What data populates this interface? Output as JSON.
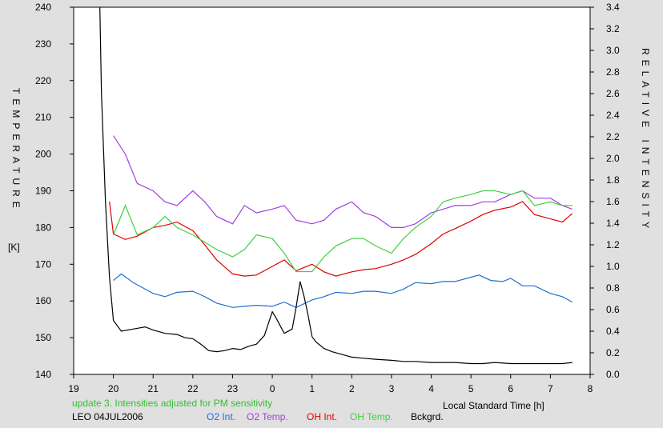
{
  "chart_data": {
    "type": "line",
    "left_axis_label": "TEMPERATURE",
    "left_axis_unit": "[K]",
    "right_axis_label": "RELATIVE INTENSITY",
    "xlabel": "Local Standard Time [h]",
    "xlim": [
      19,
      8
    ],
    "x_tick_labels": [
      "19",
      "20",
      "21",
      "22",
      "23",
      "0",
      "1",
      "2",
      "3",
      "4",
      "5",
      "6",
      "7",
      "8"
    ],
    "ylim_left": [
      140,
      240
    ],
    "y_left_ticks": [
      140,
      150,
      160,
      170,
      180,
      190,
      200,
      210,
      220,
      230,
      240
    ],
    "ylim_right": [
      0.0,
      3.4
    ],
    "y_right_ticks": [
      "0.0",
      "0.2",
      "0.4",
      "0.6",
      "0.8",
      "1.0",
      "1.2",
      "1.4",
      "1.6",
      "1.8",
      "2.0",
      "2.2",
      "2.4",
      "2.6",
      "2.8",
      "3.0",
      "3.2",
      "3.4"
    ],
    "grid": false,
    "note": "update 3. Intensities adjusted for PM sensitivity",
    "station_date": "LEO 04JUL2006",
    "series": [
      {
        "name": "O2 Int.",
        "color": "#1f6fd0",
        "axis": "right",
        "x": [
          20.0,
          20.2,
          20.5,
          20.8,
          21.0,
          21.3,
          21.6,
          22.0,
          22.3,
          22.6,
          23.0,
          23.3,
          23.6,
          24.0,
          24.3,
          24.6,
          25.0,
          25.3,
          25.6,
          26.0,
          26.3,
          26.6,
          27.0,
          27.3,
          27.6,
          28.0,
          28.3,
          28.6,
          29.0,
          29.2,
          29.5,
          29.8,
          30.0,
          30.3,
          30.6,
          31.0,
          31.3,
          31.55
        ],
        "y": [
          0.87,
          0.93,
          0.85,
          0.79,
          0.75,
          0.72,
          0.76,
          0.77,
          0.72,
          0.66,
          0.62,
          0.63,
          0.64,
          0.63,
          0.67,
          0.62,
          0.69,
          0.72,
          0.76,
          0.75,
          0.77,
          0.77,
          0.75,
          0.79,
          0.85,
          0.84,
          0.86,
          0.86,
          0.9,
          0.92,
          0.87,
          0.86,
          0.89,
          0.82,
          0.82,
          0.75,
          0.72,
          0.67
        ]
      },
      {
        "name": "O2 Temp.",
        "color": "#a040e0",
        "axis": "left",
        "x": [
          20.0,
          20.3,
          20.6,
          21.0,
          21.3,
          21.6,
          22.0,
          22.3,
          22.6,
          23.0,
          23.3,
          23.6,
          24.0,
          24.3,
          24.6,
          25.0,
          25.3,
          25.6,
          26.0,
          26.3,
          26.6,
          27.0,
          27.3,
          27.6,
          28.0,
          28.3,
          28.6,
          29.0,
          29.3,
          29.6,
          30.0,
          30.3,
          30.6,
          31.0,
          31.3,
          31.55
        ],
        "y": [
          205,
          200,
          192,
          190,
          187,
          186,
          190,
          187,
          183,
          181,
          186,
          184,
          185,
          186,
          182,
          181,
          182,
          185,
          187,
          184,
          183,
          180,
          180,
          181,
          184,
          185,
          186,
          186,
          187,
          187,
          189,
          190,
          188,
          188,
          186,
          185
        ]
      },
      {
        "name": "OH Int.",
        "color": "#e00000",
        "axis": "right",
        "x": [
          19.9,
          20.0,
          20.3,
          20.6,
          21.0,
          21.3,
          21.6,
          22.0,
          22.3,
          22.6,
          23.0,
          23.3,
          23.6,
          24.0,
          24.3,
          24.6,
          25.0,
          25.3,
          25.6,
          26.0,
          26.3,
          26.6,
          27.0,
          27.3,
          27.6,
          28.0,
          28.3,
          28.6,
          29.0,
          29.3,
          29.6,
          30.0,
          30.3,
          30.6,
          31.0,
          31.3,
          31.55
        ],
        "y": [
          1.6,
          1.3,
          1.25,
          1.28,
          1.36,
          1.38,
          1.41,
          1.33,
          1.2,
          1.06,
          0.93,
          0.91,
          0.92,
          1.0,
          1.06,
          0.96,
          1.02,
          0.95,
          0.91,
          0.95,
          0.97,
          0.98,
          1.02,
          1.06,
          1.11,
          1.21,
          1.3,
          1.35,
          1.42,
          1.48,
          1.52,
          1.55,
          1.6,
          1.48,
          1.44,
          1.41,
          1.49
        ]
      },
      {
        "name": "OH Temp.",
        "color": "#40d040",
        "axis": "left",
        "x": [
          20.0,
          20.3,
          20.6,
          21.0,
          21.3,
          21.6,
          22.0,
          22.3,
          22.6,
          23.0,
          23.3,
          23.6,
          24.0,
          24.3,
          24.6,
          25.0,
          25.3,
          25.6,
          26.0,
          26.3,
          26.6,
          27.0,
          27.3,
          27.6,
          28.0,
          28.3,
          28.6,
          29.0,
          29.3,
          29.6,
          30.0,
          30.3,
          30.6,
          31.0,
          31.3,
          31.55
        ],
        "y": [
          178,
          186,
          178,
          180,
          183,
          180,
          178,
          176,
          174,
          172,
          174,
          178,
          177,
          173,
          168,
          168,
          172,
          175,
          177,
          177,
          175,
          173,
          177,
          180,
          183,
          187,
          188,
          189,
          190,
          190,
          189,
          190,
          186,
          187,
          186,
          186
        ]
      },
      {
        "name": "Bckgrd.",
        "color": "#000000",
        "axis": "right",
        "x": [
          19.66,
          19.7,
          19.8,
          19.9,
          20.0,
          20.2,
          20.5,
          20.8,
          21.0,
          21.3,
          21.6,
          21.8,
          22.0,
          22.2,
          22.4,
          22.6,
          22.8,
          23.0,
          23.2,
          23.4,
          23.6,
          23.8,
          23.9,
          24.0,
          24.1,
          24.2,
          24.3,
          24.5,
          24.6,
          24.7,
          24.8,
          24.9,
          25.0,
          25.1,
          25.3,
          25.5,
          25.8,
          26.0,
          26.3,
          26.6,
          27.0,
          27.3,
          27.6,
          28.0,
          28.3,
          28.6,
          29.0,
          29.3,
          29.6,
          30.0,
          30.3,
          30.6,
          31.0,
          31.3,
          31.55
        ],
        "y": [
          3.4,
          2.6,
          1.6,
          0.9,
          0.5,
          0.4,
          0.42,
          0.44,
          0.41,
          0.38,
          0.37,
          0.34,
          0.33,
          0.28,
          0.22,
          0.21,
          0.22,
          0.24,
          0.23,
          0.26,
          0.28,
          0.36,
          0.47,
          0.58,
          0.52,
          0.45,
          0.38,
          0.42,
          0.62,
          0.86,
          0.72,
          0.55,
          0.35,
          0.3,
          0.24,
          0.21,
          0.18,
          0.16,
          0.15,
          0.14,
          0.13,
          0.12,
          0.12,
          0.11,
          0.11,
          0.11,
          0.1,
          0.1,
          0.11,
          0.1,
          0.1,
          0.1,
          0.1,
          0.1,
          0.11
        ]
      }
    ]
  },
  "colors": {
    "background": "#e0e0e0",
    "plot_background": "#ffffff",
    "note": "#30c030",
    "text": "#000000"
  }
}
